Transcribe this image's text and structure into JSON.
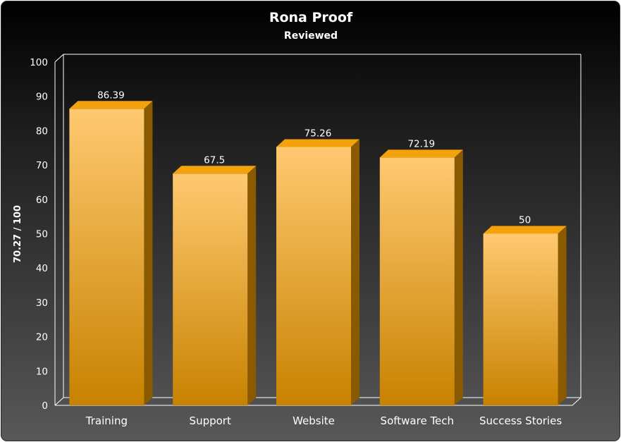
{
  "chart_data": {
    "type": "bar",
    "title": "Rona Proof",
    "subtitle": "Reviewed",
    "ylabel": "70.27 / 100",
    "xlabel": "",
    "categories": [
      "Training",
      "Support",
      "Website",
      "Software Tech",
      "Success Stories"
    ],
    "values": [
      86.39,
      67.5,
      75.26,
      72.19,
      50
    ],
    "value_labels": [
      "86.39",
      "67.5",
      "75.26",
      "72.19",
      "50"
    ],
    "ylim": [
      0,
      100
    ],
    "yticks": [
      "0",
      "10",
      "20",
      "30",
      "40",
      "50",
      "60",
      "70",
      "80",
      "90",
      "100"
    ],
    "grid": false,
    "legend": "none",
    "style": "3d",
    "colors": {
      "bar_top_light": "#ffc970",
      "bar_bottom_dark": "#c88200",
      "bar_side": "#8a5a00",
      "bar_cap": "#f4a20c",
      "axis": "#ffffff",
      "text": "#ffffff"
    }
  }
}
